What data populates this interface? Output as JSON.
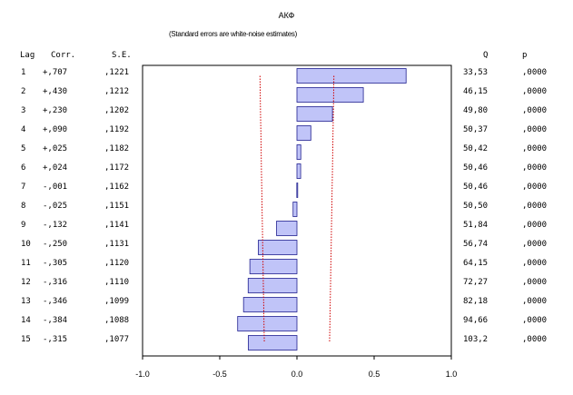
{
  "chart_data": {
    "type": "bar",
    "orientation": "horizontal",
    "title": "АКФ",
    "subtitle": "(Standard errors are white-noise estimates)",
    "columns": {
      "lag": "Lag",
      "corr": "Corr.",
      "se": "S.E.",
      "q": "Q",
      "p": "p"
    },
    "rows": [
      {
        "lag": "1",
        "corr_label": "+,707",
        "value": 0.707,
        "se": ",1221",
        "se_value": 0.1221,
        "q": "33,53",
        "p": ",0000"
      },
      {
        "lag": "2",
        "corr_label": "+,430",
        "value": 0.43,
        "se": ",1212",
        "se_value": 0.1212,
        "q": "46,15",
        "p": ",0000"
      },
      {
        "lag": "3",
        "corr_label": "+,230",
        "value": 0.23,
        "se": ",1202",
        "se_value": 0.1202,
        "q": "49,80",
        "p": ",0000"
      },
      {
        "lag": "4",
        "corr_label": "+,090",
        "value": 0.09,
        "se": ",1192",
        "se_value": 0.1192,
        "q": "50,37",
        "p": ",0000"
      },
      {
        "lag": "5",
        "corr_label": "+,025",
        "value": 0.025,
        "se": ",1182",
        "se_value": 0.1182,
        "q": "50,42",
        "p": ",0000"
      },
      {
        "lag": "6",
        "corr_label": "+,024",
        "value": 0.024,
        "se": ",1172",
        "se_value": 0.1172,
        "q": "50,46",
        "p": ",0000"
      },
      {
        "lag": "7",
        "corr_label": "-,001",
        "value": -0.001,
        "se": ",1162",
        "se_value": 0.1162,
        "q": "50,46",
        "p": ",0000"
      },
      {
        "lag": "8",
        "corr_label": "-,025",
        "value": -0.025,
        "se": ",1151",
        "se_value": 0.1151,
        "q": "50,50",
        "p": ",0000"
      },
      {
        "lag": "9",
        "corr_label": "-,132",
        "value": -0.132,
        "se": ",1141",
        "se_value": 0.1141,
        "q": "51,84",
        "p": ",0000"
      },
      {
        "lag": "10",
        "corr_label": "-,250",
        "value": -0.25,
        "se": ",1131",
        "se_value": 0.1131,
        "q": "56,74",
        "p": ",0000"
      },
      {
        "lag": "11",
        "corr_label": "-,305",
        "value": -0.305,
        "se": ",1120",
        "se_value": 0.112,
        "q": "64,15",
        "p": ",0000"
      },
      {
        "lag": "12",
        "corr_label": "-,316",
        "value": -0.316,
        "se": ",1110",
        "se_value": 0.111,
        "q": "72,27",
        "p": ",0000"
      },
      {
        "lag": "13",
        "corr_label": "-,346",
        "value": -0.346,
        "se": ",1099",
        "se_value": 0.1099,
        "q": "82,18",
        "p": ",0000"
      },
      {
        "lag": "14",
        "corr_label": "-,384",
        "value": -0.384,
        "se": ",1088",
        "se_value": 0.1088,
        "q": "94,66",
        "p": ",0000"
      },
      {
        "lag": "15",
        "corr_label": "-,315",
        "value": -0.315,
        "se": ",1077",
        "se_value": 0.1077,
        "q": "103,2",
        "p": ",0000"
      }
    ],
    "xlim": [
      -1.0,
      1.0
    ],
    "x_ticks": [
      -1.0,
      -0.5,
      0.0,
      0.5,
      1.0
    ],
    "x_tick_labels": [
      "-1.0",
      "-0.5",
      "0.0",
      "0.5",
      "1.0"
    ],
    "confidence_multiplier": 1.96,
    "grid": false,
    "colors": {
      "bar_fill": "#c0c4f8",
      "bar_stroke": "#1f1f8f",
      "confidence_line": "#d00000",
      "axis": "#000000"
    }
  }
}
